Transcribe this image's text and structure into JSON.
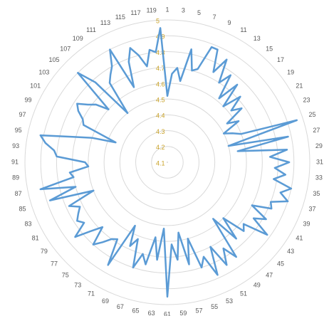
{
  "chart_data": {
    "type": "radar",
    "categories": [
      1,
      null,
      3,
      null,
      5,
      null,
      7,
      null,
      9,
      null,
      11,
      null,
      13,
      null,
      15,
      null,
      17,
      null,
      19,
      null,
      21,
      null,
      23,
      null,
      25,
      null,
      27,
      null,
      29,
      null,
      31,
      null,
      33,
      null,
      35,
      null,
      37,
      null,
      39,
      null,
      41,
      null,
      43,
      null,
      45,
      null,
      47,
      null,
      49,
      null,
      51,
      null,
      53,
      null,
      55,
      null,
      57,
      null,
      59,
      null,
      61,
      null,
      63,
      null,
      65,
      null,
      67,
      null,
      69,
      null,
      71,
      null,
      73,
      null,
      75,
      null,
      77,
      null,
      79,
      null,
      81,
      null,
      83,
      null,
      85,
      null,
      87,
      null,
      89,
      null,
      91,
      null,
      93,
      null,
      95,
      null,
      97,
      null,
      99,
      null,
      101,
      null,
      103,
      null,
      105,
      null,
      107,
      null,
      109,
      null,
      111,
      null,
      113,
      null,
      115,
      null,
      117,
      null,
      119,
      null
    ],
    "values": [
      4.52,
      4.66,
      4.7,
      4.62,
      4.83,
      4.7,
      4.72,
      4.88,
      4.88,
      4.74,
      4.85,
      4.7,
      4.78,
      4.62,
      4.76,
      4.6,
      4.72,
      4.62,
      4.68,
      4.55,
      4.62,
      4.5,
      4.55,
      4.6,
      4.96,
      4.5,
      4.88,
      4.55,
      4.86,
      4.75,
      4.87,
      4.78,
      4.85,
      4.78,
      4.9,
      4.84,
      4.9,
      4.8,
      4.82,
      4.7,
      4.82,
      4.75,
      4.88,
      4.72,
      4.75,
      4.6,
      4.75,
      4.56,
      4.84,
      4.75,
      4.85,
      4.7,
      4.88,
      4.74,
      4.8,
      4.6,
      4.76,
      4.55,
      4.72,
      4.62,
      4.95,
      4.52,
      4.72,
      4.58,
      4.76,
      4.7,
      4.8,
      4.62,
      4.68,
      4.55,
      4.85,
      4.68,
      4.7,
      4.75,
      4.8,
      4.68,
      4.75,
      4.85,
      4.75,
      4.78,
      4.75,
      4.72,
      4.78,
      4.6,
      4.88,
      4.7,
      4.92,
      4.7,
      4.72,
      4.6,
      4.62,
      4.8,
      4.82,
      4.88,
      4.92,
      4.72,
      4.6,
      4.45,
      4.68,
      4.7,
      4.75,
      4.78,
      4.72,
      4.68,
      4.6,
      4.9,
      4.78,
      4.5,
      4.72,
      4.76,
      4.8,
      4.9,
      4.62,
      4.78,
      4.86,
      4.8,
      4.72,
      4.82,
      4.8,
      4.95
    ],
    "color": "#5b9bd5",
    "rlim": [
      4.1,
      5
    ],
    "rticks": [
      4.1,
      4.2,
      4.3,
      4.4,
      4.5,
      4.6,
      4.7,
      4.8,
      4.9,
      5
    ],
    "grid": true
  }
}
